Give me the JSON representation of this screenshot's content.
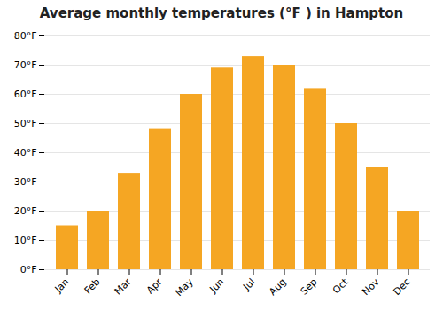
{
  "chart_data": {
    "type": "bar",
    "title": "Average monthly temperatures (°F ) in Hampton",
    "categories": [
      "Jan",
      "Feb",
      "Mar",
      "Apr",
      "May",
      "Jun",
      "Jul",
      "Aug",
      "Sep",
      "Oct",
      "Nov",
      "Dec"
    ],
    "values": [
      15,
      20,
      33,
      48,
      60,
      69,
      73,
      70,
      62,
      50,
      35,
      20
    ],
    "color": "#F5A623",
    "ylim": [
      0,
      80
    ],
    "yticks": [
      {
        "value": 0,
        "label": "0°F"
      },
      {
        "value": 10,
        "label": "10°F"
      },
      {
        "value": 20,
        "label": "20°F"
      },
      {
        "value": 30,
        "label": "30°F"
      },
      {
        "value": 40,
        "label": "40°F"
      },
      {
        "value": 50,
        "label": "50°F"
      },
      {
        "value": 60,
        "label": "60°F"
      },
      {
        "value": 70,
        "label": "70°F"
      },
      {
        "value": 80,
        "label": "80°F"
      }
    ],
    "grid": true
  }
}
